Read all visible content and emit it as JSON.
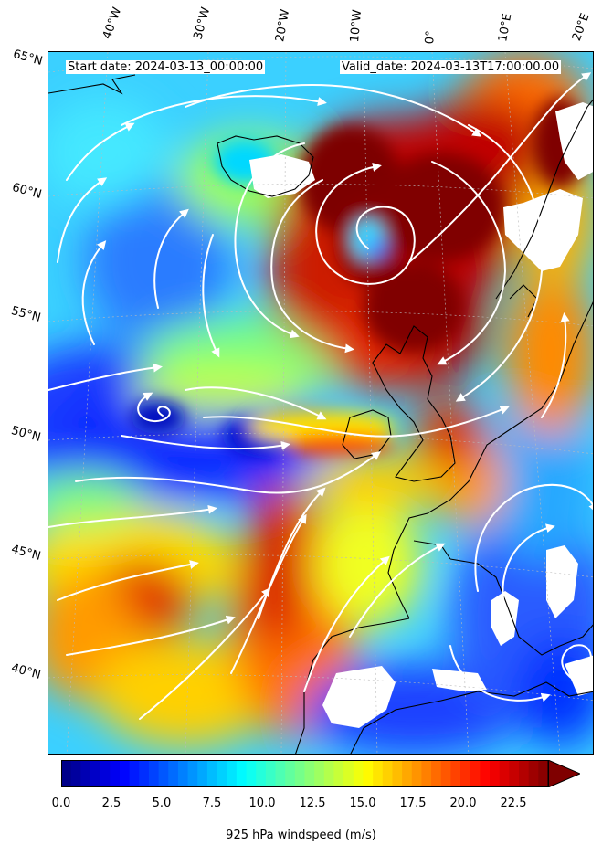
{
  "map": {
    "start_label": "Start date: 2024-03-13_00:00:00",
    "valid_label": "Valid_date: 2024-03-13T17:00:00.00",
    "projection": "stereographic",
    "lon_labels": [
      "40°W",
      "30°W",
      "20°W",
      "10°W",
      "0°",
      "10°E",
      "20°E"
    ],
    "lat_labels": [
      "65°N",
      "60°N",
      "55°N",
      "50°N",
      "45°N",
      "40°N"
    ],
    "field": "925 hPa windspeed",
    "overlay": "streamlines (white)",
    "coastline_color": "#000000"
  },
  "colorbar": {
    "colormap": "jet",
    "min": 0.0,
    "max": 25.0,
    "extend": "max",
    "ticks": [
      "0.0",
      "2.5",
      "5.0",
      "7.5",
      "10.0",
      "12.5",
      "15.0",
      "17.5",
      "20.0",
      "22.5"
    ],
    "tick_values": [
      0.0,
      2.5,
      5.0,
      7.5,
      10.0,
      12.5,
      15.0,
      17.5,
      20.0,
      22.5
    ],
    "label": "925 hPa windspeed (m/s)"
  }
}
